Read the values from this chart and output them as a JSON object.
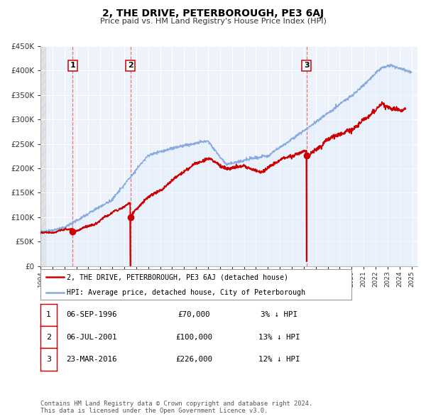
{
  "title": "2, THE DRIVE, PETERBOROUGH, PE3 6AJ",
  "subtitle": "Price paid vs. HM Land Registry's House Price Index (HPI)",
  "hpi_label": "HPI: Average price, detached house, City of Peterborough",
  "property_label": "2, THE DRIVE, PETERBOROUGH, PE3 6AJ (detached house)",
  "xlim": [
    1994.0,
    2025.5
  ],
  "ylim": [
    0,
    450000
  ],
  "yticks": [
    0,
    50000,
    100000,
    150000,
    200000,
    250000,
    300000,
    350000,
    400000,
    450000
  ],
  "ytick_labels": [
    "£0",
    "£50K",
    "£100K",
    "£150K",
    "£200K",
    "£250K",
    "£300K",
    "£350K",
    "£400K",
    "£450K"
  ],
  "sale_color": "#cc0000",
  "hpi_color": "#88aadd",
  "hpi_fill_color": "#ddeeff",
  "vline_color": "#ee6666",
  "annotation_box_color": "#cc0000",
  "grid_color": "#dddddd",
  "bg_color": "#eef2fa",
  "hatch_color": "#cccccc",
  "sales": [
    {
      "date": 1996.68,
      "price": 70000,
      "label": "1"
    },
    {
      "date": 2001.51,
      "price": 100000,
      "label": "2"
    },
    {
      "date": 2016.23,
      "price": 226000,
      "label": "3"
    }
  ],
  "table_rows": [
    {
      "num": "1",
      "date": "06-SEP-1996",
      "price": "£70,000",
      "hpi": "3% ↓ HPI"
    },
    {
      "num": "2",
      "date": "06-JUL-2001",
      "price": "£100,000",
      "hpi": "13% ↓ HPI"
    },
    {
      "num": "3",
      "date": "23-MAR-2016",
      "price": "£226,000",
      "hpi": "12% ↓ HPI"
    }
  ],
  "footer": "Contains HM Land Registry data © Crown copyright and database right 2024.\nThis data is licensed under the Open Government Licence v3.0."
}
